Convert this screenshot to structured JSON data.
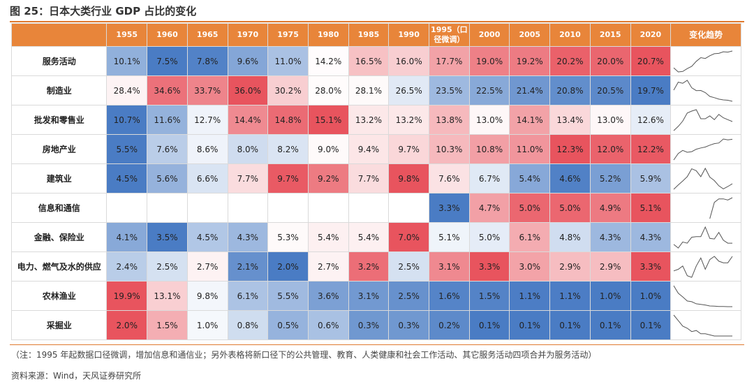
{
  "title": "图 25：日本大类行业 GDP 占比的变化",
  "note": "（注：1995 年起数据口径微调，增加信息和通信业；另外表格将新口径下的公共管理、教育、人类健康和社会工作活动、其它服务活动四项合并为服务活动）",
  "source": "资料来源：Wind，天风证券研究所",
  "colors": {
    "accent": "#e8853a",
    "low": "#4a7cc4",
    "mid": "#ffffff",
    "high": "#e8545e"
  },
  "chart_data": {
    "type": "table",
    "columns": [
      "1955",
      "1960",
      "1965",
      "1970",
      "1975",
      "1980",
      "1985",
      "1990",
      "1995（口径微调）",
      "2000",
      "2005",
      "2010",
      "2015",
      "2020"
    ],
    "trend_header": "变化趋势",
    "rows": [
      {
        "label": "服务活动",
        "values": [
          "10.1%",
          "7.5%",
          "7.8%",
          "9.6%",
          "11.0%",
          "14.2%",
          "16.5%",
          "16.0%",
          "17.7%",
          "19.0%",
          "19.2%",
          "20.2%",
          "20.0%",
          "20.7%"
        ]
      },
      {
        "label": "制造业",
        "values": [
          "28.4%",
          "34.6%",
          "33.7%",
          "36.0%",
          "30.2%",
          "28.0%",
          "28.1%",
          "26.5%",
          "23.5%",
          "22.5%",
          "21.4%",
          "20.8%",
          "20.5%",
          "19.7%"
        ]
      },
      {
        "label": "批发和零售业",
        "values": [
          "10.7%",
          "11.6%",
          "12.7%",
          "14.4%",
          "14.8%",
          "15.1%",
          "13.2%",
          "13.2%",
          "13.8%",
          "13.0%",
          "14.1%",
          "13.4%",
          "13.0%",
          "12.6%"
        ]
      },
      {
        "label": "房地产业",
        "values": [
          "5.5%",
          "7.6%",
          "8.6%",
          "8.0%",
          "8.2%",
          "9.0%",
          "9.4%",
          "9.7%",
          "10.3%",
          "10.8%",
          "11.0%",
          "12.3%",
          "12.0%",
          "12.2%"
        ]
      },
      {
        "label": "建筑业",
        "values": [
          "4.5%",
          "5.6%",
          "6.6%",
          "7.7%",
          "9.7%",
          "9.2%",
          "7.7%",
          "9.8%",
          "7.6%",
          "6.7%",
          "5.4%",
          "4.6%",
          "5.2%",
          "5.9%"
        ]
      },
      {
        "label": "信息和通信",
        "values": [
          "",
          "",
          "",
          "",
          "",
          "",
          "",
          "",
          "3.3%",
          "4.7%",
          "5.0%",
          "5.0%",
          "4.9%",
          "5.1%"
        ]
      },
      {
        "label": "金融、保险业",
        "values": [
          "4.1%",
          "3.5%",
          "4.5%",
          "4.3%",
          "5.3%",
          "5.4%",
          "5.4%",
          "7.0%",
          "5.1%",
          "5.0%",
          "6.1%",
          "4.8%",
          "4.3%",
          "4.3%"
        ]
      },
      {
        "label": "电力、燃气及水的供应",
        "values": [
          "2.4%",
          "2.5%",
          "2.7%",
          "2.1%",
          "2.0%",
          "2.7%",
          "3.2%",
          "2.5%",
          "3.1%",
          "3.3%",
          "3.0%",
          "2.9%",
          "2.9%",
          "3.3%"
        ]
      },
      {
        "label": "农林渔业",
        "values": [
          "19.9%",
          "13.1%",
          "9.8%",
          "6.1%",
          "5.5%",
          "3.6%",
          "3.1%",
          "2.5%",
          "1.6%",
          "1.5%",
          "1.1%",
          "1.1%",
          "1.0%",
          "1.0%"
        ]
      },
      {
        "label": "采掘业",
        "values": [
          "2.0%",
          "1.5%",
          "1.0%",
          "0.8%",
          "0.5%",
          "0.6%",
          "0.3%",
          "0.3%",
          "0.2%",
          "0.1%",
          "0.1%",
          "0.1%",
          "0.1%",
          "0.1%"
        ]
      }
    ]
  }
}
